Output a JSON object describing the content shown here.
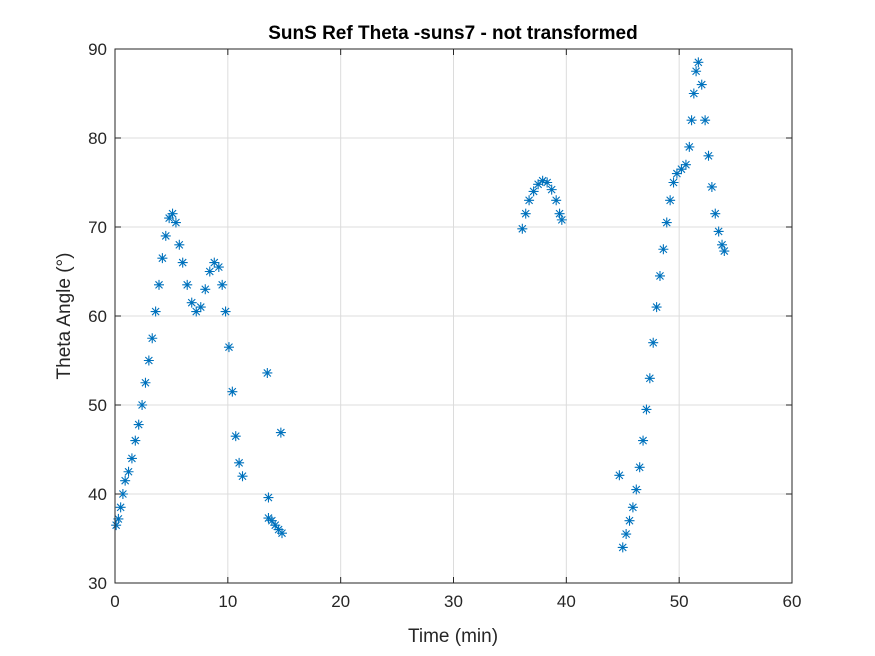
{
  "chart_data": {
    "type": "scatter",
    "title": "SunS Ref Theta -suns7 - not transformed",
    "xlabel": "Time (min)",
    "ylabel": "Theta Angle (°)",
    "xlim": [
      0,
      60
    ],
    "ylim": [
      30,
      90
    ],
    "xticks": [
      "0",
      "10",
      "20",
      "30",
      "40",
      "50",
      "60"
    ],
    "yticks": [
      "30",
      "40",
      "50",
      "60",
      "70",
      "80",
      "90"
    ],
    "grid": true,
    "marker": "asterisk",
    "color": "#0072BD",
    "series": [
      {
        "points": [
          [
            0.1,
            36.5
          ],
          [
            0.3,
            37.2
          ],
          [
            0.5,
            38.5
          ],
          [
            0.7,
            40.0
          ],
          [
            0.9,
            41.5
          ],
          [
            1.2,
            42.5
          ],
          [
            1.5,
            44.0
          ],
          [
            1.8,
            46.0
          ],
          [
            2.1,
            47.8
          ],
          [
            2.4,
            50.0
          ],
          [
            2.7,
            52.5
          ],
          [
            3.0,
            55.0
          ],
          [
            3.3,
            57.5
          ],
          [
            3.6,
            60.5
          ],
          [
            3.9,
            63.5
          ],
          [
            4.2,
            66.5
          ],
          [
            4.5,
            69.0
          ],
          [
            4.8,
            71.0
          ],
          [
            5.1,
            71.5
          ],
          [
            5.4,
            70.5
          ],
          [
            5.7,
            68.0
          ],
          [
            6.0,
            66.0
          ],
          [
            6.4,
            63.5
          ],
          [
            6.8,
            61.5
          ],
          [
            7.2,
            60.5
          ],
          [
            7.6,
            61.0
          ],
          [
            8.0,
            63.0
          ],
          [
            8.4,
            65.0
          ],
          [
            8.8,
            66.0
          ],
          [
            9.2,
            65.5
          ],
          [
            9.5,
            63.5
          ],
          [
            9.8,
            60.5
          ],
          [
            10.1,
            56.5
          ],
          [
            10.4,
            51.5
          ],
          [
            10.7,
            46.5
          ],
          [
            11.0,
            43.5
          ],
          [
            11.3,
            42.0
          ],
          [
            13.5,
            53.6
          ],
          [
            13.6,
            39.6
          ],
          [
            14.7,
            46.9
          ],
          [
            13.6,
            37.3
          ],
          [
            13.9,
            37.0
          ],
          [
            14.2,
            36.5
          ],
          [
            14.5,
            36.0
          ],
          [
            14.8,
            35.6
          ],
          [
            36.1,
            69.8
          ],
          [
            36.4,
            71.5
          ],
          [
            36.7,
            73.0
          ],
          [
            37.1,
            74.0
          ],
          [
            37.5,
            74.8
          ],
          [
            37.9,
            75.2
          ],
          [
            38.3,
            75.0
          ],
          [
            38.7,
            74.2
          ],
          [
            39.1,
            73.0
          ],
          [
            39.4,
            71.5
          ],
          [
            39.6,
            70.8
          ],
          [
            44.7,
            42.1
          ],
          [
            45.0,
            34.0
          ],
          [
            45.3,
            35.5
          ],
          [
            45.6,
            37.0
          ],
          [
            45.9,
            38.5
          ],
          [
            46.2,
            40.5
          ],
          [
            46.5,
            43.0
          ],
          [
            46.8,
            46.0
          ],
          [
            47.1,
            49.5
          ],
          [
            47.4,
            53.0
          ],
          [
            47.7,
            57.0
          ],
          [
            48.0,
            61.0
          ],
          [
            48.3,
            64.5
          ],
          [
            48.6,
            67.5
          ],
          [
            48.9,
            70.5
          ],
          [
            49.2,
            73.0
          ],
          [
            49.5,
            75.0
          ],
          [
            49.8,
            76.0
          ],
          [
            50.2,
            76.5
          ],
          [
            50.6,
            77.0
          ],
          [
            50.9,
            79.0
          ],
          [
            51.1,
            82.0
          ],
          [
            51.3,
            85.0
          ],
          [
            51.5,
            87.5
          ],
          [
            51.7,
            88.5
          ],
          [
            52.0,
            86.0
          ],
          [
            52.3,
            82.0
          ],
          [
            52.6,
            78.0
          ],
          [
            52.9,
            74.5
          ],
          [
            53.2,
            71.5
          ],
          [
            53.5,
            69.5
          ],
          [
            53.8,
            68.0
          ],
          [
            54.0,
            67.3
          ]
        ]
      }
    ]
  }
}
